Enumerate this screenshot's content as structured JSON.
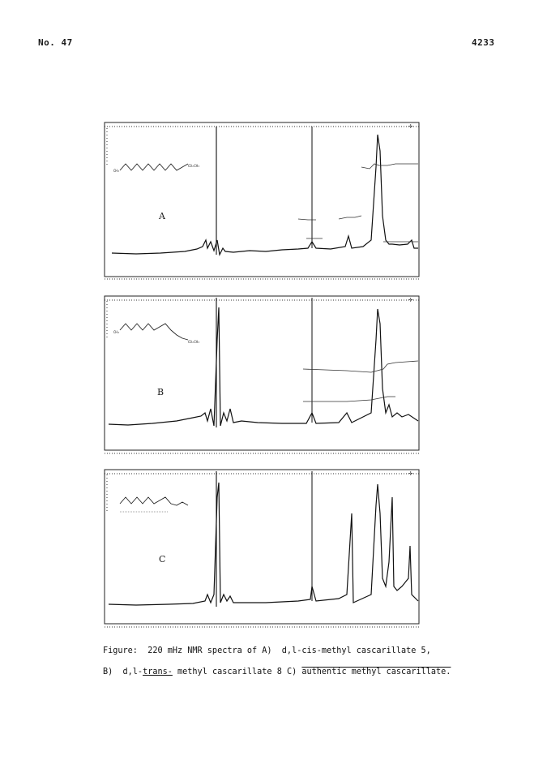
{
  "header": {
    "left": "No. 47",
    "right": "4233"
  },
  "panels": [
    {
      "letter": "A"
    },
    {
      "letter": "B"
    },
    {
      "letter": "C"
    }
  ],
  "caption": {
    "line1_a": "Figure:  220 mHz NMR spectra of A)  d,l-cis-methyl cascarillate ",
    "line1_ref": "5,",
    "line2_a": "B)  d,l-",
    "line2_trans": "trans-",
    "line2_b": " methyl cascarillate ",
    "line2_ref": "8",
    "line2_c": " C) ",
    "line2_d": "authentic methyl cascarillate."
  }
}
